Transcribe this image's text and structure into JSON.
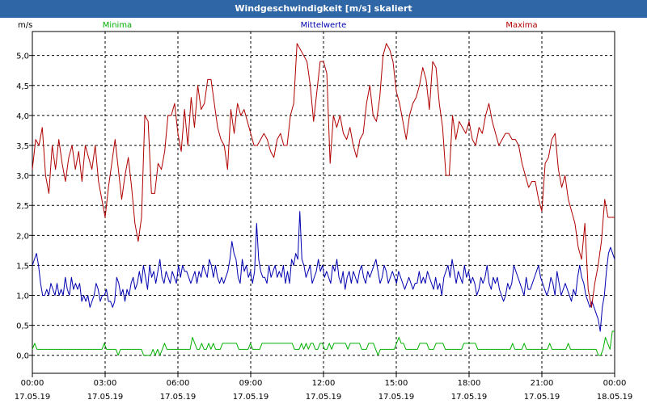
{
  "window": {
    "title": "Windgeschwindigkeit [m/s] skaliert"
  },
  "colors": {
    "title_bar": "#2f66a6",
    "minima": "#00b000",
    "mittelwerte": "#0000b0",
    "maxima": "#b00000",
    "grid": "#000000"
  },
  "chart_data": {
    "type": "line",
    "title": "Windgeschwindigkeit [m/s] skaliert",
    "ylabel": "m/s",
    "ylim": [
      -0.3,
      5.4
    ],
    "yticks": [
      "0,0",
      "0,5",
      "1,0",
      "1,5",
      "2,0",
      "2,5",
      "3,0",
      "3,5",
      "4,0",
      "4,5",
      "5,0"
    ],
    "xlim": [
      "17.05.19 00:00",
      "18.05.19 00:00"
    ],
    "xticks": [
      {
        "time": "00:00",
        "date": "17.05.19"
      },
      {
        "time": "03:00",
        "date": "17.05.19"
      },
      {
        "time": "06:00",
        "date": "17.05.19"
      },
      {
        "time": "09:00",
        "date": "17.05.19"
      },
      {
        "time": "12:00",
        "date": "17.05.19"
      },
      {
        "time": "15:00",
        "date": "17.05.19"
      },
      {
        "time": "18:00",
        "date": "17.05.19"
      },
      {
        "time": "21:00",
        "date": "17.05.19"
      },
      {
        "time": "00:00",
        "date": "18.05.19"
      }
    ],
    "grid": true,
    "legend": "top",
    "series": [
      {
        "name": "Minima",
        "color": "#00b000",
        "values": [
          0.1,
          0.2,
          0.1,
          0.1,
          0.1,
          0.1,
          0.1,
          0.1,
          0.1,
          0.1,
          0.1,
          0.1,
          0.1,
          0.1,
          0.1,
          0.1,
          0.1,
          0.1,
          0.1,
          0.1,
          0.1,
          0.1,
          0.1,
          0.1,
          0.1,
          0.1,
          0.1,
          0.1,
          0.1,
          0.1,
          0.1,
          0.2,
          0.1,
          0.1,
          0.1,
          0.1,
          0.1,
          0.0,
          0.1,
          0.1,
          0.1,
          0.1,
          0.1,
          0.1,
          0.1,
          0.1,
          0.1,
          0.1,
          0.0,
          0.0,
          0.0,
          0.0,
          0.1,
          0.0,
          0.1,
          0.0,
          0.1,
          0.2,
          0.1,
          0.1,
          0.1,
          0.1,
          0.1,
          0.1,
          0.1,
          0.1,
          0.1,
          0.1,
          0.1,
          0.3,
          0.2,
          0.1,
          0.1,
          0.2,
          0.1,
          0.1,
          0.2,
          0.1,
          0.2,
          0.1,
          0.1,
          0.1,
          0.2,
          0.2,
          0.2,
          0.2,
          0.2,
          0.2,
          0.2,
          0.1,
          0.1,
          0.1,
          0.1,
          0.1,
          0.2,
          0.1,
          0.1,
          0.1,
          0.1,
          0.2,
          0.2,
          0.2,
          0.2,
          0.2,
          0.2,
          0.2,
          0.2,
          0.2,
          0.2,
          0.2,
          0.2,
          0.2,
          0.2,
          0.1,
          0.1,
          0.1,
          0.2,
          0.1,
          0.2,
          0.1,
          0.2,
          0.2,
          0.1,
          0.1,
          0.2,
          0.2,
          0.1,
          0.1,
          0.2,
          0.1,
          0.2,
          0.2,
          0.2,
          0.2,
          0.2,
          0.2,
          0.1,
          0.2,
          0.2,
          0.2,
          0.2,
          0.2,
          0.1,
          0.1,
          0.1,
          0.2,
          0.2,
          0.2,
          0.1,
          0.0,
          0.1,
          0.1,
          0.1,
          0.1,
          0.1,
          0.1,
          0.1,
          0.2,
          0.3,
          0.2,
          0.2,
          0.1,
          0.1,
          0.1,
          0.1,
          0.1,
          0.1,
          0.2,
          0.2,
          0.2,
          0.2,
          0.1,
          0.1,
          0.1,
          0.2,
          0.2,
          0.2,
          0.2,
          0.1,
          0.1,
          0.1,
          0.1,
          0.1,
          0.1,
          0.1,
          0.1,
          0.2,
          0.2,
          0.2,
          0.2,
          0.2,
          0.2,
          0.1,
          0.1,
          0.1,
          0.1,
          0.1,
          0.1,
          0.1,
          0.1,
          0.1,
          0.1,
          0.1,
          0.1,
          0.1,
          0.1,
          0.1,
          0.2,
          0.1,
          0.1,
          0.1,
          0.1,
          0.2,
          0.1,
          0.1,
          0.1,
          0.1,
          0.1,
          0.1,
          0.1,
          0.1,
          0.1,
          0.1,
          0.2,
          0.1,
          0.1,
          0.1,
          0.1,
          0.1,
          0.1,
          0.1,
          0.2,
          0.1,
          0.1,
          0.1,
          0.1,
          0.1,
          0.1,
          0.1,
          0.1,
          0.1,
          0.1,
          0.1,
          0.1,
          0.0,
          0.0,
          0.1,
          0.3,
          0.2,
          0.1,
          0.4,
          0.4
        ]
      },
      {
        "name": "Mittelwerte",
        "color": "#0000b0",
        "values": [
          1.5,
          1.6,
          1.7,
          1.5,
          1.2,
          1.0,
          1.0,
          1.1,
          1.0,
          1.2,
          1.1,
          1.0,
          1.2,
          1.0,
          1.1,
          1.0,
          1.3,
          1.1,
          1.0,
          1.3,
          1.1,
          1.2,
          1.1,
          1.2,
          0.9,
          1.0,
          0.9,
          1.0,
          0.8,
          0.9,
          1.0,
          1.2,
          1.1,
          0.9,
          1.0,
          1.0,
          1.1,
          0.9,
          0.9,
          0.8,
          0.9,
          1.3,
          1.2,
          1.0,
          1.1,
          0.9,
          1.1,
          1.0,
          1.2,
          1.3,
          1.1,
          1.2,
          1.4,
          1.2,
          1.5,
          1.3,
          1.1,
          1.5,
          1.3,
          1.4,
          1.2,
          1.4,
          1.6,
          1.3,
          1.2,
          1.4,
          1.3,
          1.2,
          1.4,
          1.3,
          1.2,
          1.5,
          1.3,
          1.5,
          1.4,
          1.4,
          1.3,
          1.2,
          1.3,
          1.4,
          1.2,
          1.4,
          1.3,
          1.5,
          1.4,
          1.3,
          1.6,
          1.5,
          1.3,
          1.5,
          1.3,
          1.2,
          1.3,
          1.2,
          1.3,
          1.4,
          1.6,
          1.9,
          1.7,
          1.6,
          1.3,
          1.2,
          1.6,
          1.4,
          1.5,
          1.3,
          1.4,
          1.2,
          1.4,
          2.2,
          1.6,
          1.4,
          1.3,
          1.3,
          1.2,
          1.5,
          1.3,
          1.4,
          1.5,
          1.3,
          1.4,
          1.3,
          1.5,
          1.2,
          1.4,
          1.2,
          1.6,
          1.5,
          1.7,
          1.6,
          2.4,
          1.6,
          1.5,
          1.3,
          1.4,
          1.5,
          1.2,
          1.3,
          1.4,
          1.6,
          1.4,
          1.5,
          1.3,
          1.4,
          1.3,
          1.2,
          1.5,
          1.4,
          1.6,
          1.3,
          1.2,
          1.4,
          1.1,
          1.3,
          1.4,
          1.2,
          1.4,
          1.3,
          1.2,
          1.4,
          1.5,
          1.3,
          1.2,
          1.4,
          1.3,
          1.4,
          1.5,
          1.6,
          1.4,
          1.2,
          1.3,
          1.5,
          1.4,
          1.2,
          1.3,
          1.4,
          1.3,
          1.2,
          1.4,
          1.3,
          1.2,
          1.1,
          1.2,
          1.3,
          1.2,
          1.1,
          1.2,
          1.2,
          1.4,
          1.2,
          1.3,
          1.2,
          1.4,
          1.3,
          1.2,
          1.1,
          1.3,
          1.1,
          1.2,
          1.0,
          1.3,
          1.4,
          1.5,
          1.3,
          1.6,
          1.4,
          1.2,
          1.4,
          1.3,
          1.2,
          1.5,
          1.3,
          1.4,
          1.2,
          1.3,
          1.2,
          1.0,
          1.1,
          1.3,
          1.2,
          1.3,
          1.5,
          1.2,
          1.1,
          1.3,
          1.2,
          1.3,
          1.1,
          1.0,
          0.9,
          1.0,
          1.2,
          1.1,
          1.2,
          1.5,
          1.4,
          1.3,
          1.2,
          1.1,
          1.0,
          1.3,
          1.1,
          1.1,
          1.2,
          1.3,
          1.4,
          1.5,
          1.3,
          1.2,
          1.1,
          1.0,
          1.1,
          1.3,
          1.2,
          1.0,
          1.4,
          1.2,
          1.0,
          1.1,
          1.2,
          1.1,
          1.0,
          0.9,
          1.1,
          1.0,
          1.3,
          1.5,
          1.3,
          1.2,
          1.0,
          0.9,
          0.8,
          0.9,
          0.8,
          0.7,
          0.6,
          0.4,
          0.8,
          1.0,
          1.4,
          1.7,
          1.8,
          1.7,
          1.6
        ]
      },
      {
        "name": "Maxima",
        "color": "#b00000",
        "values": [
          3.1,
          3.6,
          3.5,
          3.8,
          3.0,
          2.7,
          3.5,
          3.1,
          3.6,
          3.2,
          2.9,
          3.3,
          3.5,
          3.1,
          3.4,
          2.9,
          3.5,
          3.3,
          3.1,
          3.5,
          2.9,
          2.6,
          2.3,
          2.8,
          3.2,
          3.6,
          3.1,
          2.6,
          3.0,
          3.3,
          2.8,
          2.2,
          1.9,
          2.3,
          4.0,
          3.9,
          2.7,
          2.7,
          3.2,
          3.1,
          3.4,
          4.0,
          4.0,
          4.2,
          3.7,
          3.4,
          4.1,
          3.5,
          4.3,
          3.8,
          4.5,
          4.1,
          4.2,
          4.6,
          4.6,
          4.2,
          3.8,
          3.6,
          3.5,
          3.1,
          4.1,
          3.7,
          4.2,
          4.0,
          4.1,
          3.9,
          3.7,
          3.5,
          3.5,
          3.6,
          3.7,
          3.6,
          3.4,
          3.3,
          3.6,
          3.7,
          3.5,
          3.5,
          4.0,
          4.2,
          5.2,
          5.1,
          5.0,
          4.9,
          4.5,
          3.9,
          4.4,
          4.9,
          4.9,
          4.7,
          3.2,
          4.0,
          3.8,
          4.0,
          3.7,
          3.6,
          3.8,
          3.5,
          3.3,
          3.6,
          3.7,
          4.2,
          4.5,
          4.0,
          3.9,
          4.3,
          5.0,
          5.2,
          5.1,
          4.9,
          4.4,
          4.2,
          3.9,
          3.6,
          4.0,
          4.2,
          4.3,
          4.5,
          4.8,
          4.6,
          4.1,
          4.9,
          4.8,
          4.2,
          3.8,
          3.0,
          3.0,
          4.0,
          3.6,
          3.9,
          3.8,
          3.7,
          3.9,
          3.6,
          3.5,
          3.8,
          3.7,
          4.0,
          4.2,
          3.9,
          3.7,
          3.5,
          3.6,
          3.7,
          3.7,
          3.6,
          3.6,
          3.5,
          3.2,
          3.0,
          2.8,
          2.9,
          2.9,
          2.6,
          2.4,
          3.2,
          3.3,
          3.6,
          3.7,
          3.1,
          2.8,
          3.0,
          2.6,
          2.4,
          2.2,
          1.8,
          1.6,
          2.2,
          1.1,
          0.8,
          1.2,
          1.5,
          1.9,
          2.6,
          2.3,
          2.3,
          2.3
        ]
      }
    ]
  }
}
